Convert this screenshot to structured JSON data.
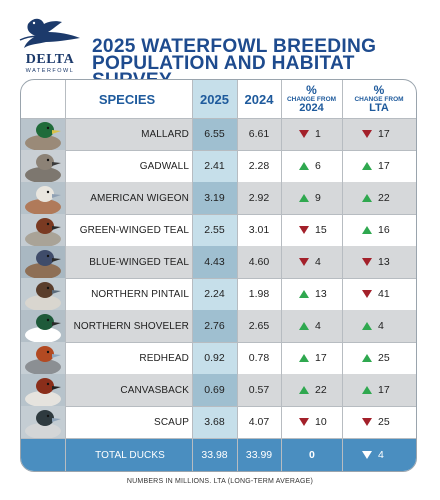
{
  "logo": {
    "name": "DELTA",
    "subname": "WATERFOWL"
  },
  "title_line1": "2025 WATERFOWL BREEDING",
  "title_line2": "POPULATION AND HABITAT SURVEY",
  "headers": {
    "species": "SPECIES",
    "y2025": "2025",
    "y2024": "2024",
    "pct": "%",
    "change_from": "CHANGE FROM",
    "vs2024": "2024",
    "vslta": "LTA"
  },
  "footnote": "NUMBERS IN MILLIONS. LTA (LONG-TERM AVERAGE)",
  "colors": {
    "up": "#2fa84f",
    "down": "#a3202a",
    "accent": "#1e4b8e",
    "total_bg": "#4a8ec0",
    "col2025": "#c6dfea"
  },
  "chart_data": {
    "type": "table",
    "columns": [
      "SPECIES",
      "2025",
      "2024",
      "% CHANGE FROM 2024",
      "% CHANGE FROM LTA"
    ],
    "rows": [
      {
        "species": "MALLARD",
        "y2025": "6.55",
        "y2024": "6.61",
        "ch2024": "1",
        "dir2024": "down",
        "chlta": "17",
        "dirlta": "down",
        "duck": "mallard-icon"
      },
      {
        "species": "GADWALL",
        "y2025": "2.41",
        "y2024": "2.28",
        "ch2024": "6",
        "dir2024": "up",
        "chlta": "17",
        "dirlta": "up",
        "duck": "gadwall-icon"
      },
      {
        "species": "AMERICAN WIGEON",
        "y2025": "3.19",
        "y2024": "2.92",
        "ch2024": "9",
        "dir2024": "up",
        "chlta": "22",
        "dirlta": "up",
        "duck": "wigeon-icon"
      },
      {
        "species": "GREEN-WINGED TEAL",
        "y2025": "2.55",
        "y2024": "3.01",
        "ch2024": "15",
        "dir2024": "down",
        "chlta": "16",
        "dirlta": "up",
        "duck": "green-winged-teal-icon"
      },
      {
        "species": "BLUE-WINGED TEAL",
        "y2025": "4.43",
        "y2024": "4.60",
        "ch2024": "4",
        "dir2024": "down",
        "chlta": "13",
        "dirlta": "down",
        "duck": "blue-winged-teal-icon"
      },
      {
        "species": "NORTHERN PINTAIL",
        "y2025": "2.24",
        "y2024": "1.98",
        "ch2024": "13",
        "dir2024": "up",
        "chlta": "41",
        "dirlta": "down",
        "duck": "pintail-icon"
      },
      {
        "species": "NORTHERN SHOVELER",
        "y2025": "2.76",
        "y2024": "2.65",
        "ch2024": "4",
        "dir2024": "up",
        "chlta": "4",
        "dirlta": "up",
        "duck": "shoveler-icon"
      },
      {
        "species": "REDHEAD",
        "y2025": "0.92",
        "y2024": "0.78",
        "ch2024": "17",
        "dir2024": "up",
        "chlta": "25",
        "dirlta": "up",
        "duck": "redhead-icon"
      },
      {
        "species": "CANVASBACK",
        "y2025": "0.69",
        "y2024": "0.57",
        "ch2024": "22",
        "dir2024": "up",
        "chlta": "17",
        "dirlta": "up",
        "duck": "canvasback-icon"
      },
      {
        "species": "SCAUP",
        "y2025": "3.68",
        "y2024": "4.07",
        "ch2024": "10",
        "dir2024": "down",
        "chlta": "25",
        "dirlta": "down",
        "duck": "scaup-icon"
      }
    ],
    "total": {
      "label": "TOTAL DUCKS",
      "y2025": "33.98",
      "y2024": "33.99",
      "ch2024": "0",
      "chlta": "4",
      "dirlta": "down"
    }
  }
}
